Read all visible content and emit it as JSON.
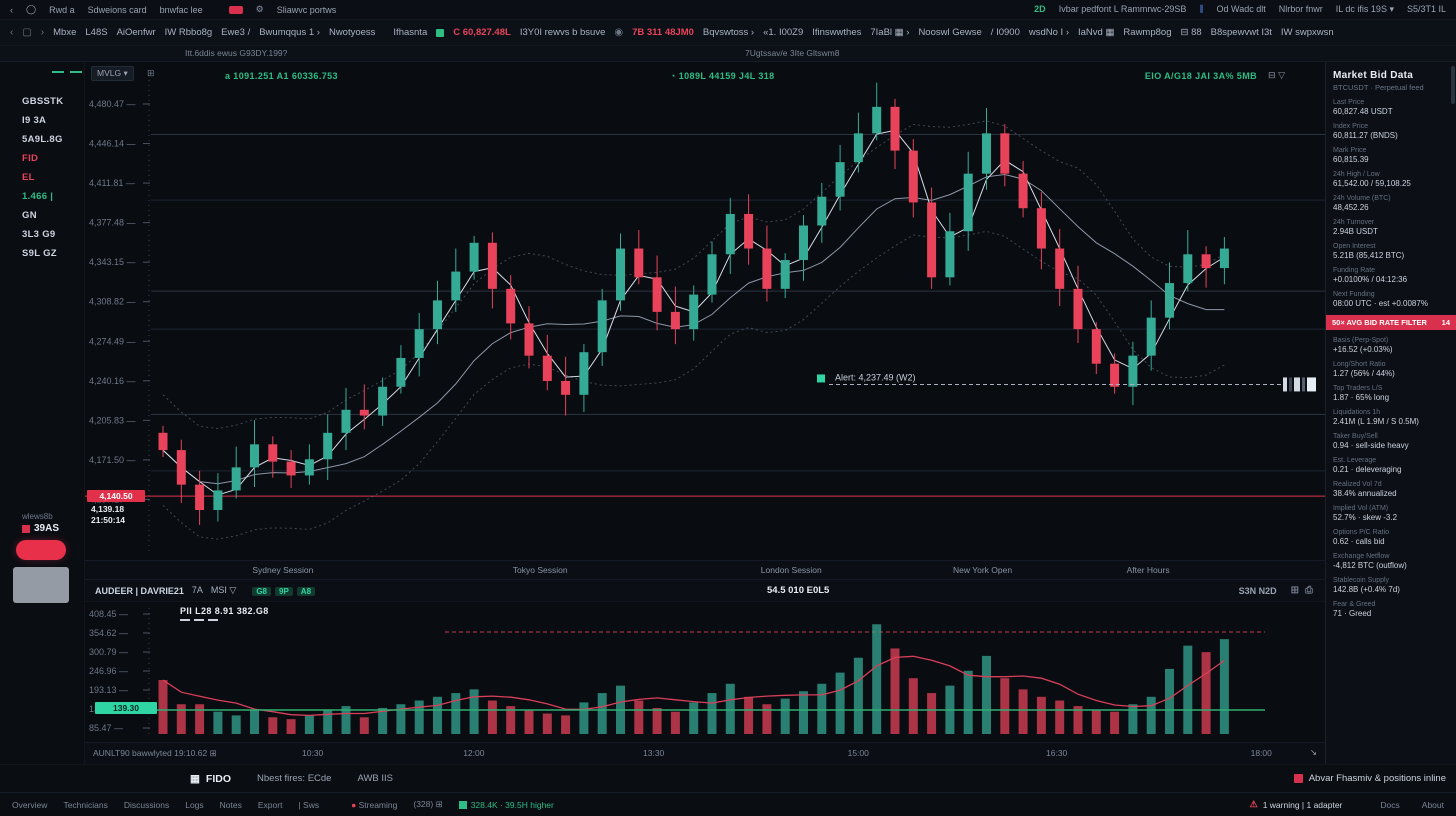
{
  "colors": {
    "bg": "#0a0d12",
    "accent_green": "#2ebd85",
    "accent_red": "#e8304a",
    "candle_up": "#35ab96",
    "candle_down": "#e8435a",
    "tag_teal": "#2fd6a4"
  },
  "topbar": {
    "back": "‹",
    "circle": "◯",
    "left_items": [
      "Rwd a",
      "Sdweions card",
      "bnwfac lee"
    ],
    "after_badge": "Sliawvc portws",
    "right_items": [
      {
        "t": "2D",
        "c": "green"
      },
      {
        "t": "Ivbar pedfont L Rammrwc-29SB",
        "c": ""
      },
      {
        "t": "⫼",
        "c": "blue"
      },
      {
        "t": "Od Wadc dlt",
        "c": ""
      },
      {
        "t": "Nlrbor fnwr",
        "c": ""
      },
      {
        "t": "IL dc ifis 19S ▾",
        "c": ""
      },
      {
        "t": "S5/3T1 IL",
        "c": ""
      }
    ]
  },
  "menubar": {
    "back": "‹",
    "window": "▢",
    "fwd": "›",
    "items": [
      "Mbxe",
      "L48S",
      "AiOenfwr",
      "IW Rbbo8g",
      "Ewe3 /",
      "Bwumqqus 1 ›",
      "Nwotyoess"
    ],
    "ticker1_label": "Ifhasnta",
    "ticker1_value": "C 60,827.48L",
    "mid_item": "I3Y0I rewvs b bsuve",
    "ticker2_icon": "◉",
    "ticker2_value": "7B 311 48JM0",
    "items2": [
      "Bqvswtoss ›",
      "«1. I00Z9",
      "Ifinswwthes",
      "7IaBl ▦ ›",
      "Nooswl Gewse",
      "/ I0900",
      "wsdNo I ›",
      "IaNvd ▦",
      "Rawmp8og",
      "⊟ 88",
      "B8spewvwt I3t",
      "IW swpxwsn"
    ]
  },
  "subrow": {
    "left": "Itt.6ddis ewus G93DY.199?",
    "right": "7Ugtssav/e 3Ite Gltswm8"
  },
  "sidebar": {
    "items": [
      {
        "t": "GBSSTK",
        "c": "w"
      },
      {
        "t": "I9 3A",
        "c": "w"
      },
      {
        "t": "5A9L.8G",
        "c": "w"
      },
      {
        "t": "FID",
        "c": "r"
      },
      {
        "t": "EL",
        "c": "r"
      },
      {
        "t": "1.466 |",
        "c": "g"
      },
      {
        "t": "GN",
        "c": "w"
      },
      {
        "t": "3L3 G9",
        "c": "w"
      },
      {
        "t": "S9L GZ",
        "c": "w"
      }
    ],
    "mini_label": "wlews8b",
    "mini_value": "39AS"
  },
  "chart": {
    "chip": "MVLG ▾",
    "chip_icon": "⊞",
    "legend_left": "a 1091.251   A1 60336.753",
    "legend_center": "◔  1089L 44159 J4L 318",
    "legend_right": "EIO A/G18 JAI 3A% 5MB",
    "legend_right_icons": "⊟ ▽",
    "price_tag": "4,140.50",
    "tag_sub1": "4,139.18",
    "tag_sub2": "21:50:14"
  },
  "sessions": [
    {
      "t": "Sydney Session",
      "x": 0.135
    },
    {
      "t": "Tokyo Session",
      "x": 0.345
    },
    {
      "t": "London Session",
      "x": 0.545
    },
    {
      "t": "New York Open",
      "x": 0.7
    },
    {
      "t": "After Hours",
      "x": 0.84
    }
  ],
  "lower": {
    "title": "AUDEER | DAVRIE21",
    "items": [
      "7A",
      "MSI ▽"
    ],
    "chips": [
      "G8",
      "9P",
      "A8"
    ],
    "center": "54.5 010 E0L5",
    "right": "S3N N2D",
    "right_icons": [
      "⊞",
      "⎙"
    ],
    "legend": "PII L28   8.91   382.G8",
    "teal_tag": "139.30"
  },
  "xaxis": {
    "left_label": "AUNLT90 bawwlyted  19:10.62",
    "left_icon": "⊞",
    "ticks": [
      {
        "t": "10:30",
        "x": 0.175
      },
      {
        "t": "12:00",
        "x": 0.305
      },
      {
        "t": "13:30",
        "x": 0.45
      },
      {
        "t": "15:00",
        "x": 0.615
      },
      {
        "t": "16:30",
        "x": 0.775
      },
      {
        "t": "18:00",
        "x": 0.94
      }
    ],
    "right_icon": "↘"
  },
  "right_panel": {
    "title": "Market Bid Data",
    "subtitle": "BTCUSDT · Perpetual feed",
    "alert_after": 9,
    "alert": {
      "text": "50× AVG BID RATE FILTER",
      "badge": "14"
    },
    "entries": [
      {
        "l": "Last Price",
        "v": "60,827.48 USDT"
      },
      {
        "l": "Index Price",
        "v": "60,811.27 (BNDS)"
      },
      {
        "l": "Mark Price",
        "v": "60,815.39"
      },
      {
        "l": "24h High / Low",
        "v": "61,542.00 / 59,108.25"
      },
      {
        "l": "24h Volume (BTC)",
        "v": "48,452.26"
      },
      {
        "l": "24h Turnover",
        "v": "2.94B USDT"
      },
      {
        "l": "Open Interest",
        "v": "5.21B (85,412 BTC)"
      },
      {
        "l": "Funding Rate",
        "v": "+0.0100% / 04:12:36"
      },
      {
        "l": "Next Funding",
        "v": "08:00 UTC · est +0.0087%"
      },
      {
        "l": "Basis (Perp-Spot)",
        "v": "+16.52 (+0.03%)"
      },
      {
        "l": "Long/Short Ratio",
        "v": "1.27 (56% / 44%)"
      },
      {
        "l": "Top Traders L/S",
        "v": "1.87 · 65% long"
      },
      {
        "l": "Liquidations 1h",
        "v": "2.41M (L 1.9M / S 0.5M)"
      },
      {
        "l": "Taker Buy/Sell",
        "v": "0.94 · sell-side heavy"
      },
      {
        "l": "Est. Leverage",
        "v": "0.21 · deleveraging"
      },
      {
        "l": "Realized Vol 7d",
        "v": "38.4% annualized"
      },
      {
        "l": "Implied Vol (ATM)",
        "v": "52.7% · skew -3.2"
      },
      {
        "l": "Options P/C Ratio",
        "v": "0.62 · calls bid"
      },
      {
        "l": "Exchange Netflow",
        "v": "-4,812 BTC (outflow)"
      },
      {
        "l": "Stablecoin Supply",
        "v": "142.8B (+0.4% 7d)"
      },
      {
        "l": "Fear & Greed",
        "v": "71 · Greed"
      }
    ]
  },
  "bottom1": {
    "tab_icon": "▦",
    "tab0": "FIDO",
    "tabs": [
      "Nbest fires: ECde",
      "AWB IIS"
    ],
    "right": "Abvar Fhasmiv & positions inline"
  },
  "bottom2": {
    "left": [
      "Overview",
      "Technicians",
      "Discussions",
      "Logs",
      "Notes",
      "Export",
      "| Sws"
    ],
    "stream_dot": "●",
    "stream": "Streaming",
    "count": "(328) ⊞",
    "green_text": "328.4K · 39.5H higher",
    "warn": "1 warning | 1 adapter",
    "right": [
      "Docs",
      "About"
    ]
  },
  "chart_data": {
    "type": "candlestick+volume",
    "title": "Main price chart with MAs, bands, levels and volume sub-chart",
    "price_range": [
      4095,
      4510
    ],
    "open_first": 4195,
    "closes": [
      4180,
      4150,
      4128,
      4145,
      4165,
      4185,
      4170,
      4158,
      4172,
      4195,
      4215,
      4210,
      4235,
      4260,
      4285,
      4310,
      4335,
      4360,
      4320,
      4290,
      4262,
      4240,
      4228,
      4265,
      4310,
      4355,
      4330,
      4300,
      4285,
      4315,
      4350,
      4385,
      4355,
      4320,
      4345,
      4375,
      4400,
      4430,
      4455,
      4478,
      4440,
      4395,
      4330,
      4370,
      4420,
      4455,
      4420,
      4390,
      4355,
      4320,
      4285,
      4255,
      4235,
      4262,
      4295,
      4325,
      4350,
      4338,
      4355
    ],
    "volumes": [
      58,
      32,
      32,
      24,
      20,
      26,
      18,
      16,
      20,
      26,
      30,
      18,
      28,
      32,
      36,
      40,
      44,
      48,
      36,
      30,
      26,
      22,
      20,
      34,
      44,
      52,
      36,
      28,
      24,
      34,
      44,
      54,
      40,
      32,
      38,
      46,
      54,
      66,
      82,
      118,
      92,
      60,
      44,
      52,
      68,
      84,
      60,
      48,
      40,
      36,
      30,
      26,
      24,
      32,
      40,
      70,
      95,
      88,
      102
    ],
    "levels_gray": [
      4454,
      4397,
      4318,
      4285,
      4211,
      4162
    ],
    "level_red": 4140,
    "annotation": {
      "price": 4237,
      "label": "Alert: 4,237.49 (W2)",
      "x_start": 0.6
    },
    "y_labels": [
      {
        "p": 4480.47,
        "t": "4,480.47"
      },
      {
        "p": 4446.14,
        "t": "4,446.14"
      },
      {
        "p": 4411.81,
        "t": "4,411.81"
      },
      {
        "p": 4377.48,
        "t": "4,377.48"
      },
      {
        "p": 4343.15,
        "t": "4,343.15"
      },
      {
        "p": 4308.82,
        "t": "4,308.82"
      },
      {
        "p": 4274.49,
        "t": "4,274.49"
      },
      {
        "p": 4240.16,
        "t": "4,240.16"
      },
      {
        "p": 4205.83,
        "t": "4,205.83"
      },
      {
        "p": 4171.5,
        "t": "4,171.50"
      },
      {
        "p": 4137.17,
        "t": "4,137.17"
      }
    ],
    "vol_labels": [
      "408.45",
      "354.62",
      "300.79",
      "246.96",
      "193.13",
      "139.30",
      "85.47"
    ],
    "xlabel": "time",
    "ylabel": "price",
    "grid": "horizontal levels",
    "legend_position": "top"
  }
}
